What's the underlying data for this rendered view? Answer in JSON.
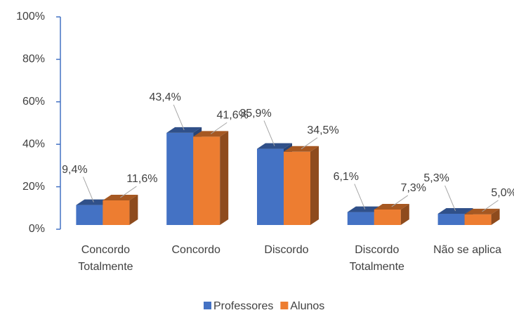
{
  "chart_data": {
    "type": "bar3d",
    "categories": [
      "Concordo Totalmente",
      "Concordo",
      "Discordo",
      "Discordo Totalmente",
      "Não se aplica"
    ],
    "series": [
      {
        "name": "Professores",
        "color": "#4472c4",
        "values": [
          9.4,
          43.4,
          35.9,
          6.1,
          5.3
        ],
        "value_labels": [
          "9,4%",
          "43,4%",
          "35,9%",
          "6,1%",
          "5,3%"
        ]
      },
      {
        "name": "Alunos",
        "color": "#ed7d31",
        "values": [
          11.6,
          41.6,
          34.5,
          7.3,
          5.0
        ],
        "value_labels": [
          "11,6%",
          "41,6%",
          "34,5%",
          "7,3%",
          "5,0%"
        ]
      }
    ],
    "ylim": [
      0,
      100
    ],
    "yticks": [
      {
        "value": 0,
        "label": "0%"
      },
      {
        "value": 20,
        "label": "20%"
      },
      {
        "value": 40,
        "label": "40%"
      },
      {
        "value": 60,
        "label": "60%"
      },
      {
        "value": 80,
        "label": "80%"
      },
      {
        "value": 100,
        "label": "100%"
      }
    ],
    "legend": "bottom"
  }
}
